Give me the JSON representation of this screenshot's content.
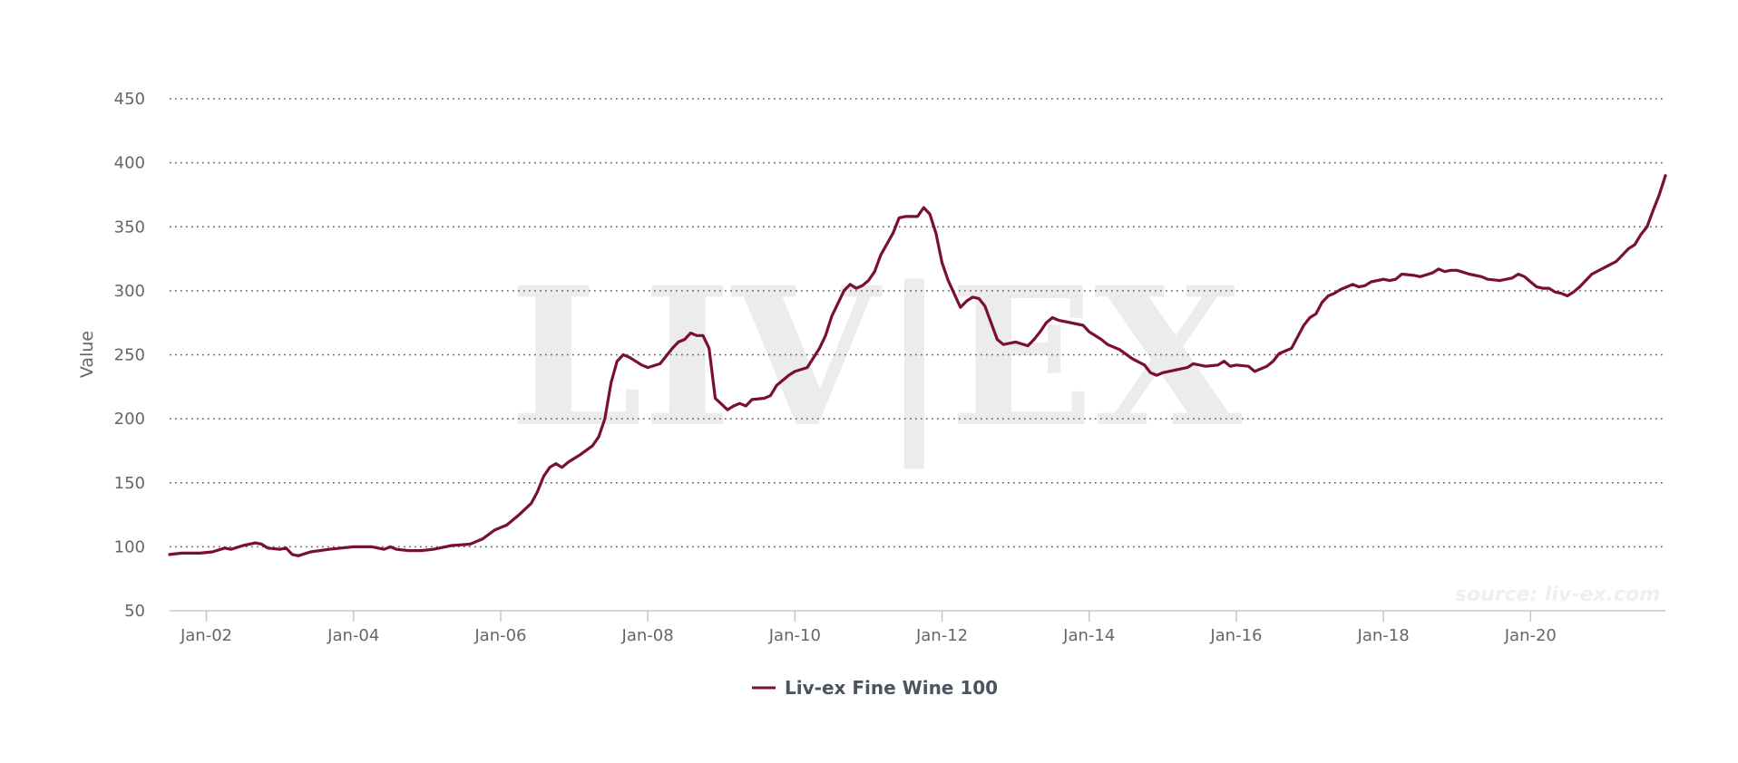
{
  "chart_data": {
    "type": "line",
    "ylabel": "Value",
    "ylim": [
      50,
      450
    ],
    "yticks": [
      50,
      100,
      150,
      200,
      250,
      300,
      350,
      400,
      450
    ],
    "xlim": [
      "2001-07",
      "2021-11"
    ],
    "xticks": [
      {
        "label": "Jan-02",
        "date": "2002-01"
      },
      {
        "label": "Jan-04",
        "date": "2004-01"
      },
      {
        "label": "Jan-06",
        "date": "2006-01"
      },
      {
        "label": "Jan-08",
        "date": "2008-01"
      },
      {
        "label": "Jan-10",
        "date": "2010-01"
      },
      {
        "label": "Jan-12",
        "date": "2012-01"
      },
      {
        "label": "Jan-14",
        "date": "2014-01"
      },
      {
        "label": "Jan-16",
        "date": "2016-01"
      },
      {
        "label": "Jan-18",
        "date": "2018-01"
      },
      {
        "label": "Jan-20",
        "date": "2020-01"
      }
    ],
    "grid": "horizontal-dotted",
    "legend_position": "bottom-center",
    "series": [
      {
        "name": "Liv-ex Fine Wine 100",
        "color": "#7a1030",
        "points": [
          [
            "2001-07",
            94
          ],
          [
            "2001-09",
            95
          ],
          [
            "2001-12",
            95
          ],
          [
            "2002-02",
            96
          ],
          [
            "2002-04",
            99
          ],
          [
            "2002-05",
            98
          ],
          [
            "2002-07",
            101
          ],
          [
            "2002-09",
            103
          ],
          [
            "2002-10",
            102
          ],
          [
            "2002-11",
            99
          ],
          [
            "2003-01",
            98
          ],
          [
            "2003-02",
            99
          ],
          [
            "2003-03",
            94
          ],
          [
            "2003-04",
            93
          ],
          [
            "2003-06",
            96
          ],
          [
            "2003-09",
            98
          ],
          [
            "2003-11",
            99
          ],
          [
            "2004-01",
            100
          ],
          [
            "2004-04",
            100
          ],
          [
            "2004-06",
            98
          ],
          [
            "2004-07",
            100
          ],
          [
            "2004-08",
            98
          ],
          [
            "2004-10",
            97
          ],
          [
            "2004-12",
            97
          ],
          [
            "2005-02",
            98
          ],
          [
            "2005-05",
            101
          ],
          [
            "2005-08",
            102
          ],
          [
            "2005-09",
            104
          ],
          [
            "2005-10",
            106
          ],
          [
            "2005-12",
            113
          ],
          [
            "2006-01",
            115
          ],
          [
            "2006-02",
            117
          ],
          [
            "2006-04",
            125
          ],
          [
            "2006-06",
            134
          ],
          [
            "2006-07",
            143
          ],
          [
            "2006-08",
            155
          ],
          [
            "2006-09",
            162
          ],
          [
            "2006-10",
            165
          ],
          [
            "2006-11",
            162
          ],
          [
            "2006-12",
            166
          ],
          [
            "2007-02",
            172
          ],
          [
            "2007-04",
            179
          ],
          [
            "2007-05",
            186
          ],
          [
            "2007-06",
            200
          ],
          [
            "2007-07",
            228
          ],
          [
            "2007-08",
            245
          ],
          [
            "2007-09",
            250
          ],
          [
            "2007-10",
            248
          ],
          [
            "2007-12",
            242
          ],
          [
            "2008-01",
            240
          ],
          [
            "2008-03",
            243
          ],
          [
            "2008-05",
            255
          ],
          [
            "2008-06",
            260
          ],
          [
            "2008-07",
            262
          ],
          [
            "2008-08",
            267
          ],
          [
            "2008-09",
            265
          ],
          [
            "2008-10",
            265
          ],
          [
            "2008-11",
            255
          ],
          [
            "2008-12",
            216
          ],
          [
            "2009-02",
            207
          ],
          [
            "2009-03",
            210
          ],
          [
            "2009-04",
            212
          ],
          [
            "2009-05",
            210
          ],
          [
            "2009-06",
            215
          ],
          [
            "2009-08",
            216
          ],
          [
            "2009-09",
            218
          ],
          [
            "2009-10",
            226
          ],
          [
            "2009-12",
            234
          ],
          [
            "2010-01",
            237
          ],
          [
            "2010-03",
            240
          ],
          [
            "2010-05",
            255
          ],
          [
            "2010-06",
            265
          ],
          [
            "2010-07",
            280
          ],
          [
            "2010-09",
            300
          ],
          [
            "2010-10",
            305
          ],
          [
            "2010-11",
            302
          ],
          [
            "2010-12",
            304
          ],
          [
            "2011-01",
            308
          ],
          [
            "2011-02",
            315
          ],
          [
            "2011-03",
            328
          ],
          [
            "2011-05",
            345
          ],
          [
            "2011-06",
            357
          ],
          [
            "2011-07",
            358
          ],
          [
            "2011-09",
            358
          ],
          [
            "2011-10",
            365
          ],
          [
            "2011-11",
            360
          ],
          [
            "2011-12",
            345
          ],
          [
            "2012-01",
            322
          ],
          [
            "2012-02",
            308
          ],
          [
            "2012-04",
            287
          ],
          [
            "2012-05",
            292
          ],
          [
            "2012-06",
            295
          ],
          [
            "2012-07",
            294
          ],
          [
            "2012-08",
            288
          ],
          [
            "2012-09",
            275
          ],
          [
            "2012-10",
            262
          ],
          [
            "2012-11",
            258
          ],
          [
            "2013-01",
            260
          ],
          [
            "2013-03",
            257
          ],
          [
            "2013-04",
            262
          ],
          [
            "2013-05",
            268
          ],
          [
            "2013-06",
            275
          ],
          [
            "2013-07",
            279
          ],
          [
            "2013-08",
            277
          ],
          [
            "2013-10",
            275
          ],
          [
            "2013-12",
            273
          ],
          [
            "2014-01",
            268
          ],
          [
            "2014-03",
            262
          ],
          [
            "2014-04",
            258
          ],
          [
            "2014-06",
            254
          ],
          [
            "2014-08",
            247
          ],
          [
            "2014-10",
            242
          ],
          [
            "2014-11",
            236
          ],
          [
            "2014-12",
            234
          ],
          [
            "2015-01",
            236
          ],
          [
            "2015-03",
            238
          ],
          [
            "2015-05",
            240
          ],
          [
            "2015-06",
            243
          ],
          [
            "2015-08",
            241
          ],
          [
            "2015-10",
            242
          ],
          [
            "2015-11",
            245
          ],
          [
            "2015-12",
            241
          ],
          [
            "2016-01",
            242
          ],
          [
            "2016-03",
            241
          ],
          [
            "2016-04",
            237
          ],
          [
            "2016-06",
            241
          ],
          [
            "2016-07",
            245
          ],
          [
            "2016-08",
            251
          ],
          [
            "2016-10",
            255
          ],
          [
            "2016-11",
            264
          ],
          [
            "2016-12",
            273
          ],
          [
            "2017-01",
            279
          ],
          [
            "2017-02",
            282
          ],
          [
            "2017-03",
            291
          ],
          [
            "2017-04",
            296
          ],
          [
            "2017-05",
            298
          ],
          [
            "2017-06",
            301
          ],
          [
            "2017-08",
            305
          ],
          [
            "2017-09",
            303
          ],
          [
            "2017-10",
            304
          ],
          [
            "2017-11",
            307
          ],
          [
            "2018-01",
            309
          ],
          [
            "2018-02",
            308
          ],
          [
            "2018-03",
            309
          ],
          [
            "2018-04",
            313
          ],
          [
            "2018-06",
            312
          ],
          [
            "2018-07",
            311
          ],
          [
            "2018-09",
            314
          ],
          [
            "2018-10",
            317
          ],
          [
            "2018-11",
            315
          ],
          [
            "2018-12",
            316
          ],
          [
            "2019-01",
            316
          ],
          [
            "2019-03",
            313
          ],
          [
            "2019-05",
            311
          ],
          [
            "2019-06",
            309
          ],
          [
            "2019-08",
            308
          ],
          [
            "2019-10",
            310
          ],
          [
            "2019-11",
            313
          ],
          [
            "2019-12",
            311
          ],
          [
            "2020-01",
            307
          ],
          [
            "2020-02",
            303
          ],
          [
            "2020-03",
            302
          ],
          [
            "2020-04",
            302
          ],
          [
            "2020-05",
            299
          ],
          [
            "2020-06",
            298
          ],
          [
            "2020-07",
            296
          ],
          [
            "2020-08",
            299
          ],
          [
            "2020-09",
            303
          ],
          [
            "2020-10",
            308
          ],
          [
            "2020-11",
            313
          ],
          [
            "2021-01",
            318
          ],
          [
            "2021-03",
            323
          ],
          [
            "2021-04",
            328
          ],
          [
            "2021-05",
            333
          ],
          [
            "2021-06",
            336
          ],
          [
            "2021-07",
            344
          ],
          [
            "2021-08",
            350
          ],
          [
            "2021-09",
            363
          ],
          [
            "2021-10",
            375
          ],
          [
            "2021-11",
            390
          ]
        ]
      }
    ],
    "credit": "source: liv-ex.com",
    "watermark": "LIV|EX"
  },
  "colors": {
    "series": "#7a1030",
    "grid": "#555555",
    "axis": "#c0c8d4",
    "watermark": "#ececec"
  }
}
